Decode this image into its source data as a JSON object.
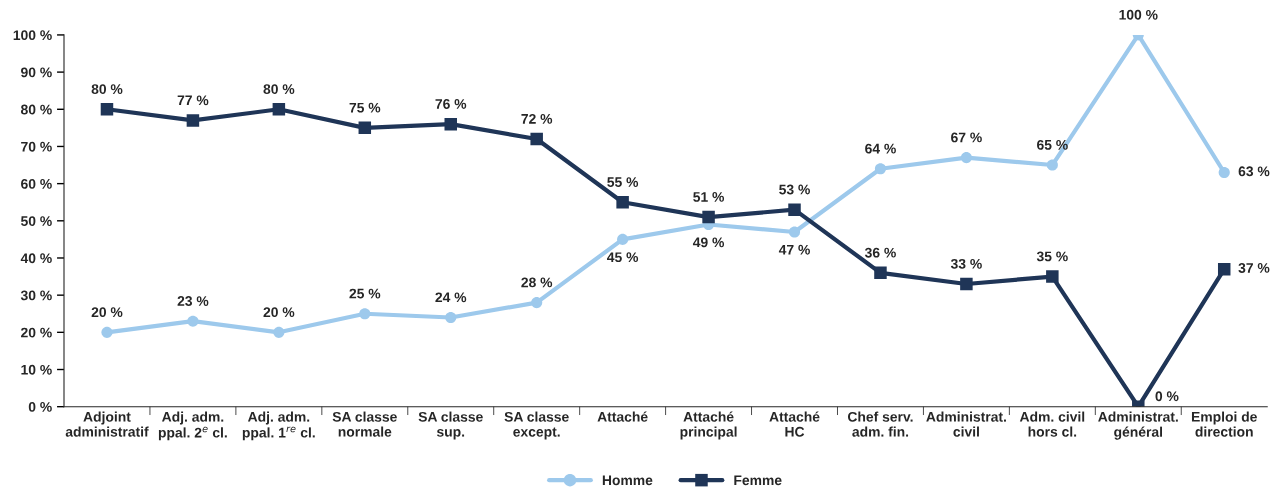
{
  "chart_data": {
    "type": "line",
    "categories": [
      "Adjoint\nadministratif",
      "Adj. adm.\nppal. 2$^{e}$ cl.",
      "Adj. adm.\nppal. 1$^{re}$ cl.",
      "SA classe\nnormale",
      "SA classe\nsup.",
      "SA classe\nexcept.",
      "Attaché",
      "Attaché\nprincipal",
      "Attaché\nHC",
      "Chef serv.\nadm. fin.",
      "Administrat.\ncivil",
      "Adm. civil\nhors cl.",
      "Administrat.\ngénéral",
      "Emploi de\ndirection"
    ],
    "series": [
      {
        "name": "Homme",
        "color": "#9dc9ec",
        "marker": "circle",
        "values": [
          20,
          23,
          20,
          25,
          24,
          28,
          45,
          49,
          47,
          64,
          67,
          65,
          100,
          63
        ],
        "value_labels": [
          "20 %",
          "23 %",
          "20 %",
          "25 %",
          "24 %",
          "28 %",
          "45 %",
          "49 %",
          "47 %",
          "64 %",
          "67 %",
          "65 %",
          "100 %",
          "63 %"
        ]
      },
      {
        "name": "Femme",
        "color": "#1f3557",
        "marker": "square",
        "values": [
          80,
          77,
          80,
          75,
          76,
          72,
          55,
          51,
          53,
          36,
          33,
          35,
          0,
          37
        ],
        "value_labels": [
          "80 %",
          "77 %",
          "80 %",
          "75 %",
          "76 %",
          "72 %",
          "55 %",
          "51 %",
          "53 %",
          "36 %",
          "33 %",
          "35 %",
          "0 %",
          "37 %"
        ]
      }
    ],
    "ylim": [
      0,
      100
    ],
    "yticks": [
      {
        "value": 0,
        "label": "0 %"
      },
      {
        "value": 10,
        "label": "10 %"
      },
      {
        "value": 20,
        "label": "20 %"
      },
      {
        "value": 30,
        "label": "30 %"
      },
      {
        "value": 40,
        "label": "40 %"
      },
      {
        "value": 50,
        "label": "50 %"
      },
      {
        "value": 60,
        "label": "60 %"
      },
      {
        "value": 70,
        "label": "70 %"
      },
      {
        "value": 80,
        "label": "80 %"
      },
      {
        "value": 90,
        "label": "90 %"
      },
      {
        "value": 100,
        "label": "100 %"
      }
    ],
    "legend": "bottom",
    "line_style": "solid"
  }
}
